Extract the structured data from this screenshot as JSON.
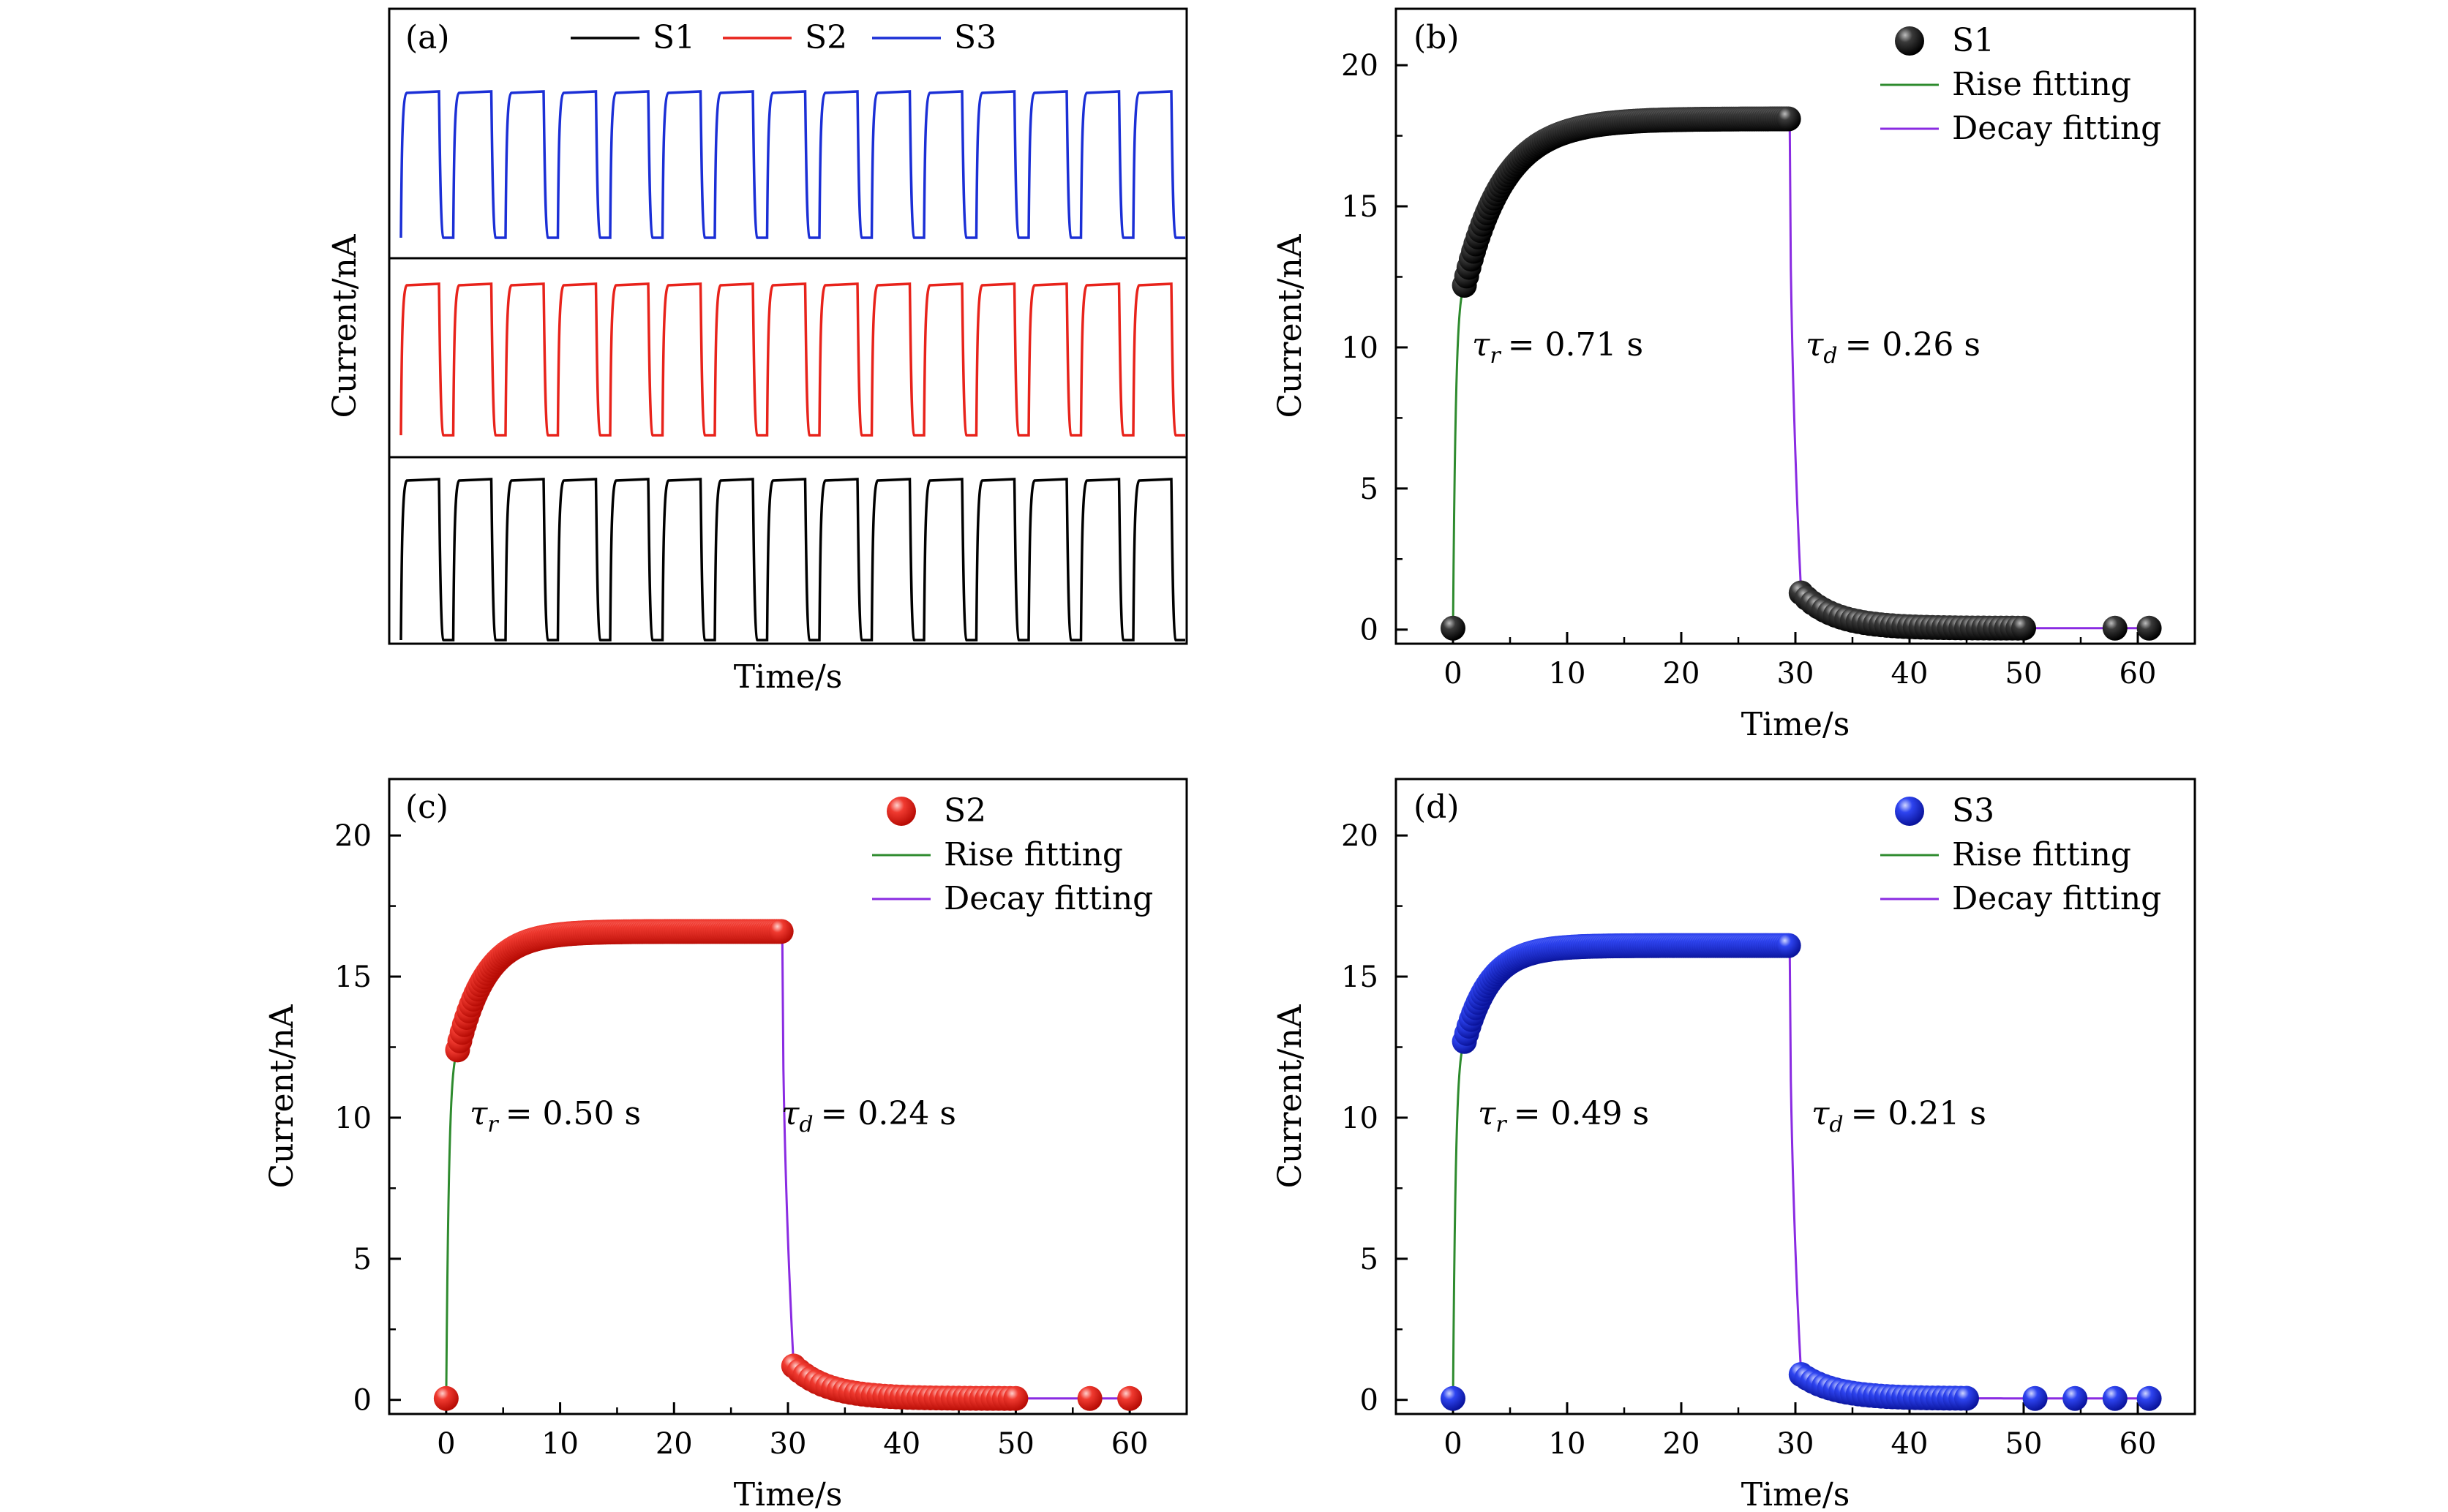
{
  "chart_data": [
    {
      "panel": "(a)",
      "type": "line",
      "xlabel": "Time/s",
      "ylabel": "Current/nA",
      "legend": {
        "placement": "top",
        "entries": [
          "S1",
          "S2",
          "S3"
        ]
      },
      "colors": {
        "S1": "#000000",
        "S2": "#e8231b",
        "S3": "#1b2fd6"
      },
      "cycles": 15,
      "series": [
        {
          "name": "S3",
          "color": "#1b2fd6"
        },
        {
          "name": "S2",
          "color": "#e8231b"
        },
        {
          "name": "S1",
          "color": "#000000"
        }
      ]
    },
    {
      "panel": "(b)",
      "type": "scatter",
      "xlabel": "Time/s",
      "ylabel": "Current/nA",
      "xlim": [
        -5,
        65
      ],
      "ylim": [
        -0.5,
        22
      ],
      "xticks": [
        0,
        10,
        20,
        30,
        40,
        50,
        60
      ],
      "yticks": [
        0,
        5,
        10,
        15,
        20
      ],
      "legend": {
        "placement": "top-right",
        "entries": [
          "S1",
          "Rise fitting",
          "Decay fitting"
        ]
      },
      "marker_color": "#000000",
      "rise_fit_color": "#2e8b2e",
      "decay_fit_color": "#8a2be2",
      "plateau": 18.1,
      "rise_start": 12.2,
      "rise_tau_curve": 3.5,
      "decay_start_value": 1.3,
      "decay_tail_end": 50,
      "tail_points": [
        58,
        61
      ],
      "tau_r": {
        "symbol": "τ",
        "sub": "r",
        "value": "= 0.71 s"
      },
      "tau_d": {
        "symbol": "τ",
        "sub": "d",
        "value": "= 0.26 s"
      }
    },
    {
      "panel": "(c)",
      "type": "scatter",
      "xlabel": "Time/s",
      "ylabel": "Current/nA",
      "xlim": [
        -5,
        65
      ],
      "ylim": [
        -0.5,
        22
      ],
      "xticks": [
        0,
        10,
        20,
        30,
        40,
        50,
        60
      ],
      "yticks": [
        0,
        5,
        10,
        15,
        20
      ],
      "legend": {
        "placement": "top-right",
        "entries": [
          "S2",
          "Rise fitting",
          "Decay fitting"
        ]
      },
      "marker_color": "#e8231b",
      "rise_fit_color": "#2e8b2e",
      "decay_fit_color": "#8a2be2",
      "plateau": 16.6,
      "rise_start": 12.4,
      "rise_tau_curve": 2.5,
      "decay_start_value": 1.2,
      "decay_tail_end": 50,
      "tail_points": [
        56.5,
        60
      ],
      "tau_r": {
        "symbol": "τ",
        "sub": "r",
        "value": "= 0.50 s"
      },
      "tau_d": {
        "symbol": "τ",
        "sub": "d",
        "value": "= 0.24 s"
      }
    },
    {
      "panel": "(d)",
      "type": "scatter",
      "xlabel": "Time/s",
      "ylabel": "Current/nA",
      "xlim": [
        -5,
        65
      ],
      "ylim": [
        -0.5,
        22
      ],
      "xticks": [
        0,
        10,
        20,
        30,
        40,
        50,
        60
      ],
      "yticks": [
        0,
        5,
        10,
        15,
        20
      ],
      "legend": {
        "placement": "top-right",
        "entries": [
          "S3",
          "Rise fitting",
          "Decay fitting"
        ]
      },
      "marker_color": "#1b2fd6",
      "rise_fit_color": "#2e8b2e",
      "decay_fit_color": "#8a2be2",
      "plateau": 16.1,
      "rise_start": 12.7,
      "rise_tau_curve": 2.3,
      "decay_start_value": 0.9,
      "decay_tail_end": 45,
      "tail_points": [
        51,
        54.5,
        58,
        61
      ],
      "tau_r": {
        "symbol": "τ",
        "sub": "r",
        "value": "= 0.49 s"
      },
      "tau_d": {
        "symbol": "τ",
        "sub": "d",
        "value": "= 0.21 s"
      }
    }
  ]
}
